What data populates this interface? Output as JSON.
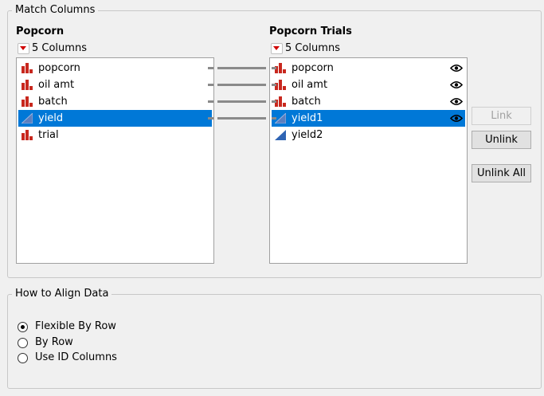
{
  "match_columns": {
    "title": "Match Columns",
    "left": {
      "table": "Popcorn",
      "count": "5 Columns",
      "columns": [
        {
          "name": "popcorn",
          "type": "nominal",
          "linked": true,
          "selected": false
        },
        {
          "name": "oil amt",
          "type": "nominal",
          "linked": true,
          "selected": false
        },
        {
          "name": "batch",
          "type": "nominal",
          "linked": true,
          "selected": false
        },
        {
          "name": "yield",
          "type": "continuous",
          "linked": true,
          "selected": true
        },
        {
          "name": "trial",
          "type": "nominal",
          "linked": false,
          "selected": false
        }
      ]
    },
    "right": {
      "table": "Popcorn Trials",
      "count": "5 Columns",
      "columns": [
        {
          "name": "popcorn",
          "type": "nominal",
          "linked": true,
          "selected": false,
          "visible": true
        },
        {
          "name": "oil amt",
          "type": "nominal",
          "linked": true,
          "selected": false,
          "visible": true
        },
        {
          "name": "batch",
          "type": "nominal",
          "linked": true,
          "selected": false,
          "visible": true
        },
        {
          "name": "yield1",
          "type": "continuous",
          "linked": true,
          "selected": true,
          "visible": true
        },
        {
          "name": "yield2",
          "type": "continuous",
          "linked": false,
          "selected": false,
          "visible": false
        }
      ]
    },
    "buttons": {
      "link": "Link",
      "unlink": "Unlink",
      "unlink_all": "Unlink All"
    }
  },
  "align": {
    "title": "How to Align Data",
    "options": [
      {
        "label": "Flexible By Row",
        "checked": true
      },
      {
        "label": "By Row",
        "checked": false
      },
      {
        "label": "Use ID Columns",
        "checked": false
      }
    ]
  },
  "colors": {
    "selection": "#0078d7",
    "nominal_icon": "#c8281e",
    "continuous_icon": "#2f64b4"
  }
}
